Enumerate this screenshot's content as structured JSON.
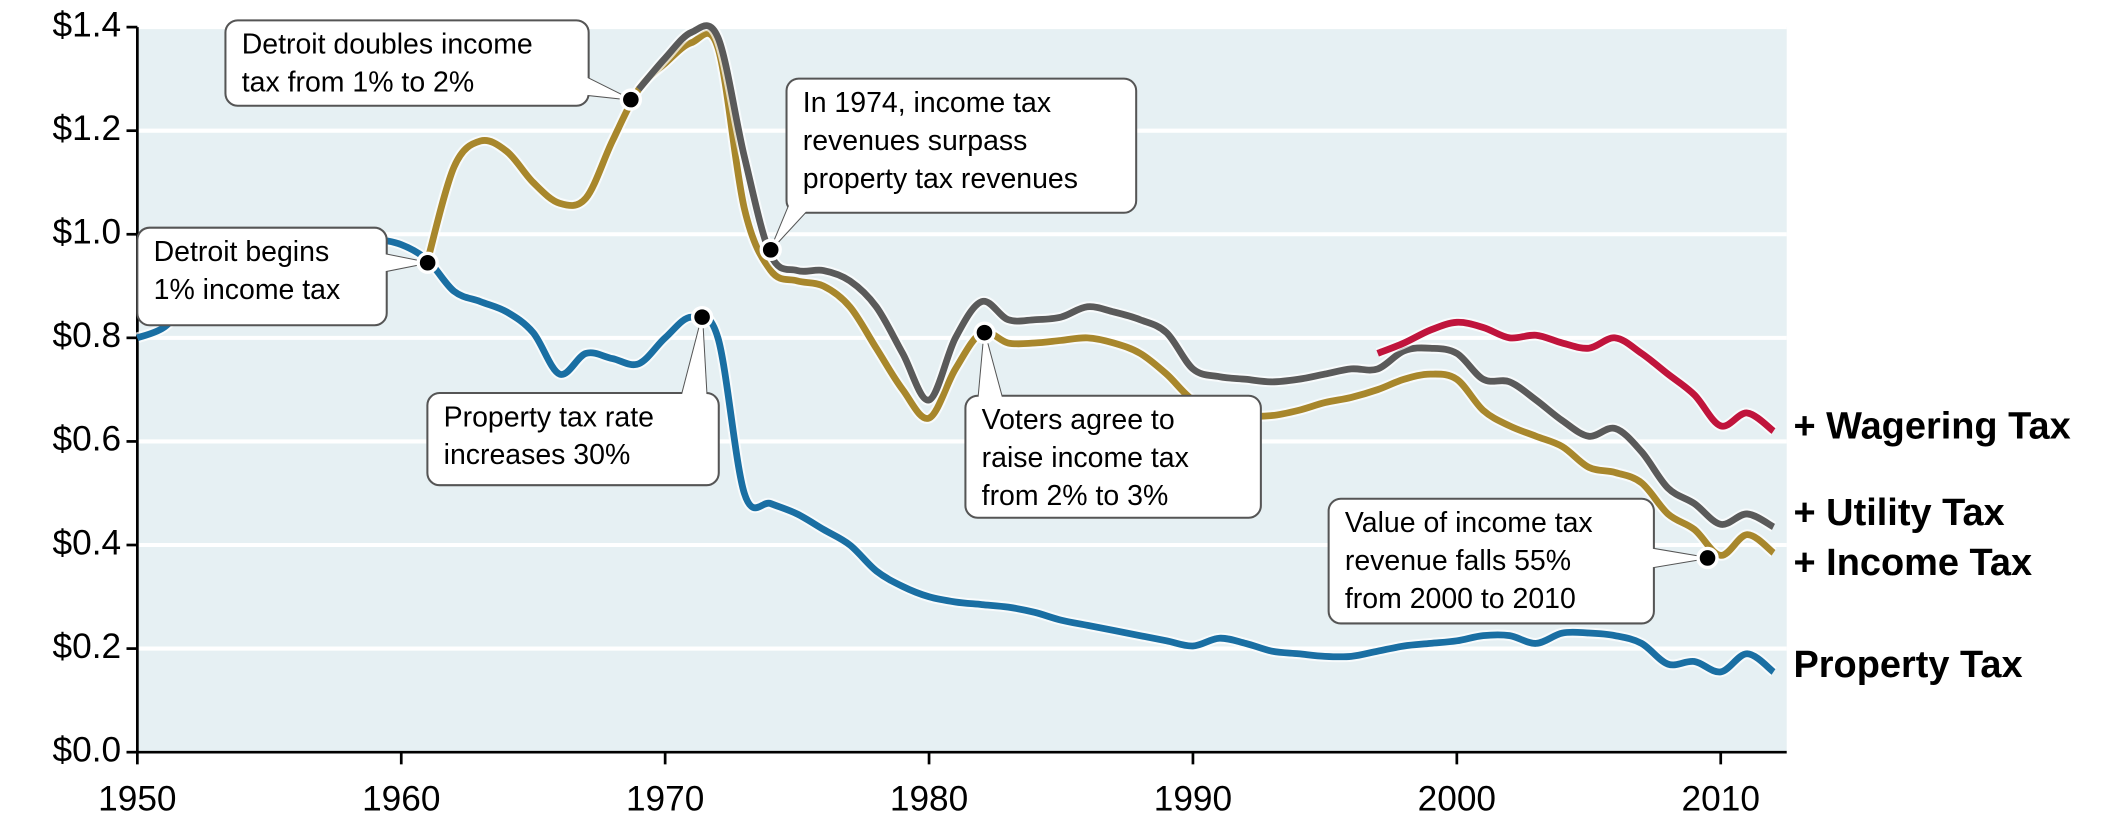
{
  "chart_data": {
    "type": "line",
    "x": [
      1950,
      1951,
      1952,
      1953,
      1954,
      1955,
      1956,
      1957,
      1958,
      1959,
      1960,
      1961,
      1962,
      1963,
      1964,
      1965,
      1966,
      1967,
      1968,
      1969,
      1970,
      1971,
      1972,
      1973,
      1974,
      1975,
      1976,
      1977,
      1978,
      1979,
      1980,
      1981,
      1982,
      1983,
      1984,
      1985,
      1986,
      1987,
      1988,
      1989,
      1990,
      1991,
      1992,
      1993,
      1994,
      1995,
      1996,
      1997,
      1998,
      1999,
      2000,
      2001,
      2002,
      2003,
      2004,
      2005,
      2006,
      2007,
      2008,
      2009,
      2010,
      2011,
      2012
    ],
    "series": [
      {
        "name": "Property Tax",
        "color": "#1a6fa3",
        "values": [
          0.8,
          0.82,
          0.87,
          0.91,
          0.94,
          0.96,
          0.98,
          0.99,
          0.99,
          0.99,
          0.98,
          0.95,
          0.89,
          0.87,
          0.85,
          0.81,
          0.73,
          0.77,
          0.76,
          0.75,
          0.8,
          0.84,
          0.8,
          0.5,
          0.48,
          0.46,
          0.43,
          0.4,
          0.35,
          0.32,
          0.3,
          0.29,
          0.285,
          0.28,
          0.27,
          0.255,
          0.245,
          0.235,
          0.225,
          0.215,
          0.205,
          0.22,
          0.21,
          0.195,
          0.19,
          0.185,
          0.185,
          0.195,
          0.205,
          0.21,
          0.215,
          0.225,
          0.225,
          0.21,
          0.23,
          0.23,
          0.225,
          0.21,
          0.17,
          0.175,
          0.155,
          0.19,
          0.155
        ]
      },
      {
        "name": "+ Income Tax",
        "color": "#a8872c",
        "values": [
          null,
          null,
          null,
          null,
          null,
          null,
          null,
          null,
          null,
          null,
          null,
          0.95,
          1.13,
          1.18,
          1.16,
          1.1,
          1.06,
          1.07,
          1.18,
          1.28,
          1.33,
          1.37,
          1.36,
          1.05,
          0.93,
          0.91,
          0.9,
          0.86,
          0.78,
          0.7,
          0.645,
          0.74,
          0.81,
          0.79,
          0.79,
          0.795,
          0.8,
          0.79,
          0.77,
          0.73,
          0.68,
          0.665,
          0.65,
          0.65,
          0.66,
          0.675,
          0.685,
          0.7,
          0.72,
          0.73,
          0.72,
          0.66,
          0.63,
          0.61,
          0.59,
          0.55,
          0.54,
          0.52,
          0.46,
          0.43,
          0.38,
          0.42,
          0.385
        ]
      },
      {
        "name": "+ Utility Tax",
        "color": "#5a5a5a",
        "values": [
          null,
          null,
          null,
          null,
          null,
          null,
          null,
          null,
          null,
          null,
          null,
          null,
          null,
          null,
          null,
          null,
          null,
          null,
          null,
          1.28,
          1.34,
          1.39,
          1.38,
          1.15,
          0.96,
          0.93,
          0.93,
          0.91,
          0.86,
          0.77,
          0.68,
          0.8,
          0.87,
          0.835,
          0.835,
          0.84,
          0.86,
          0.85,
          0.835,
          0.81,
          0.74,
          0.725,
          0.72,
          0.715,
          0.72,
          0.73,
          0.74,
          0.74,
          0.775,
          0.78,
          0.77,
          0.72,
          0.715,
          0.68,
          0.64,
          0.61,
          0.625,
          0.58,
          0.51,
          0.48,
          0.44,
          0.46,
          0.435
        ]
      },
      {
        "name": "+ Wagering Tax",
        "color": "#c0143c",
        "values": [
          null,
          null,
          null,
          null,
          null,
          null,
          null,
          null,
          null,
          null,
          null,
          null,
          null,
          null,
          null,
          null,
          null,
          null,
          null,
          null,
          null,
          null,
          null,
          null,
          null,
          null,
          null,
          null,
          null,
          null,
          null,
          null,
          null,
          null,
          null,
          null,
          null,
          null,
          null,
          null,
          null,
          null,
          null,
          null,
          null,
          null,
          null,
          0.77,
          0.79,
          0.815,
          0.83,
          0.82,
          0.8,
          0.805,
          0.79,
          0.78,
          0.8,
          0.77,
          0.73,
          0.69,
          0.63,
          0.655,
          0.62
        ]
      }
    ],
    "xlim": [
      1950,
      2012.5
    ],
    "xticks": [
      1950,
      1960,
      1970,
      1980,
      1990,
      2000,
      2010
    ],
    "ylim": [
      0,
      1.4
    ],
    "yticks": [
      {
        "value": 0,
        "label": "$0.0"
      },
      {
        "value": 0.2,
        "label": "$0.2"
      },
      {
        "value": 0.4,
        "label": "$0.4"
      },
      {
        "value": 0.6,
        "label": "$0.6"
      },
      {
        "value": 0.8,
        "label": "$0.8"
      },
      {
        "value": 1.0,
        "label": "$1.0"
      },
      {
        "value": 1.2,
        "label": "$1.2"
      },
      {
        "value": 1.4,
        "label": "$1.4"
      }
    ],
    "grid": true,
    "annotations": [
      {
        "text": [
          "Detroit begins",
          "1% income tax"
        ],
        "x": 1961,
        "y": 0.945
      },
      {
        "text": [
          "Detroit doubles income",
          "tax from 1% to 2%"
        ],
        "x": 1968.7,
        "y": 1.26
      },
      {
        "text": [
          "In 1974, income tax",
          "revenues surpass",
          "property tax revenues"
        ],
        "x": 1974,
        "y": 0.97
      },
      {
        "text": [
          "Property tax rate",
          "increases 30%"
        ],
        "x": 1971.4,
        "y": 0.84
      },
      {
        "text": [
          "Voters agree to",
          "raise income tax",
          "from 2% to 3%"
        ],
        "x": 1982.1,
        "y": 0.81
      },
      {
        "text": [
          "Value of income tax",
          "revenue falls 55%",
          "from 2000 to 2010"
        ],
        "x": 2009.5,
        "y": 0.375
      }
    ]
  }
}
